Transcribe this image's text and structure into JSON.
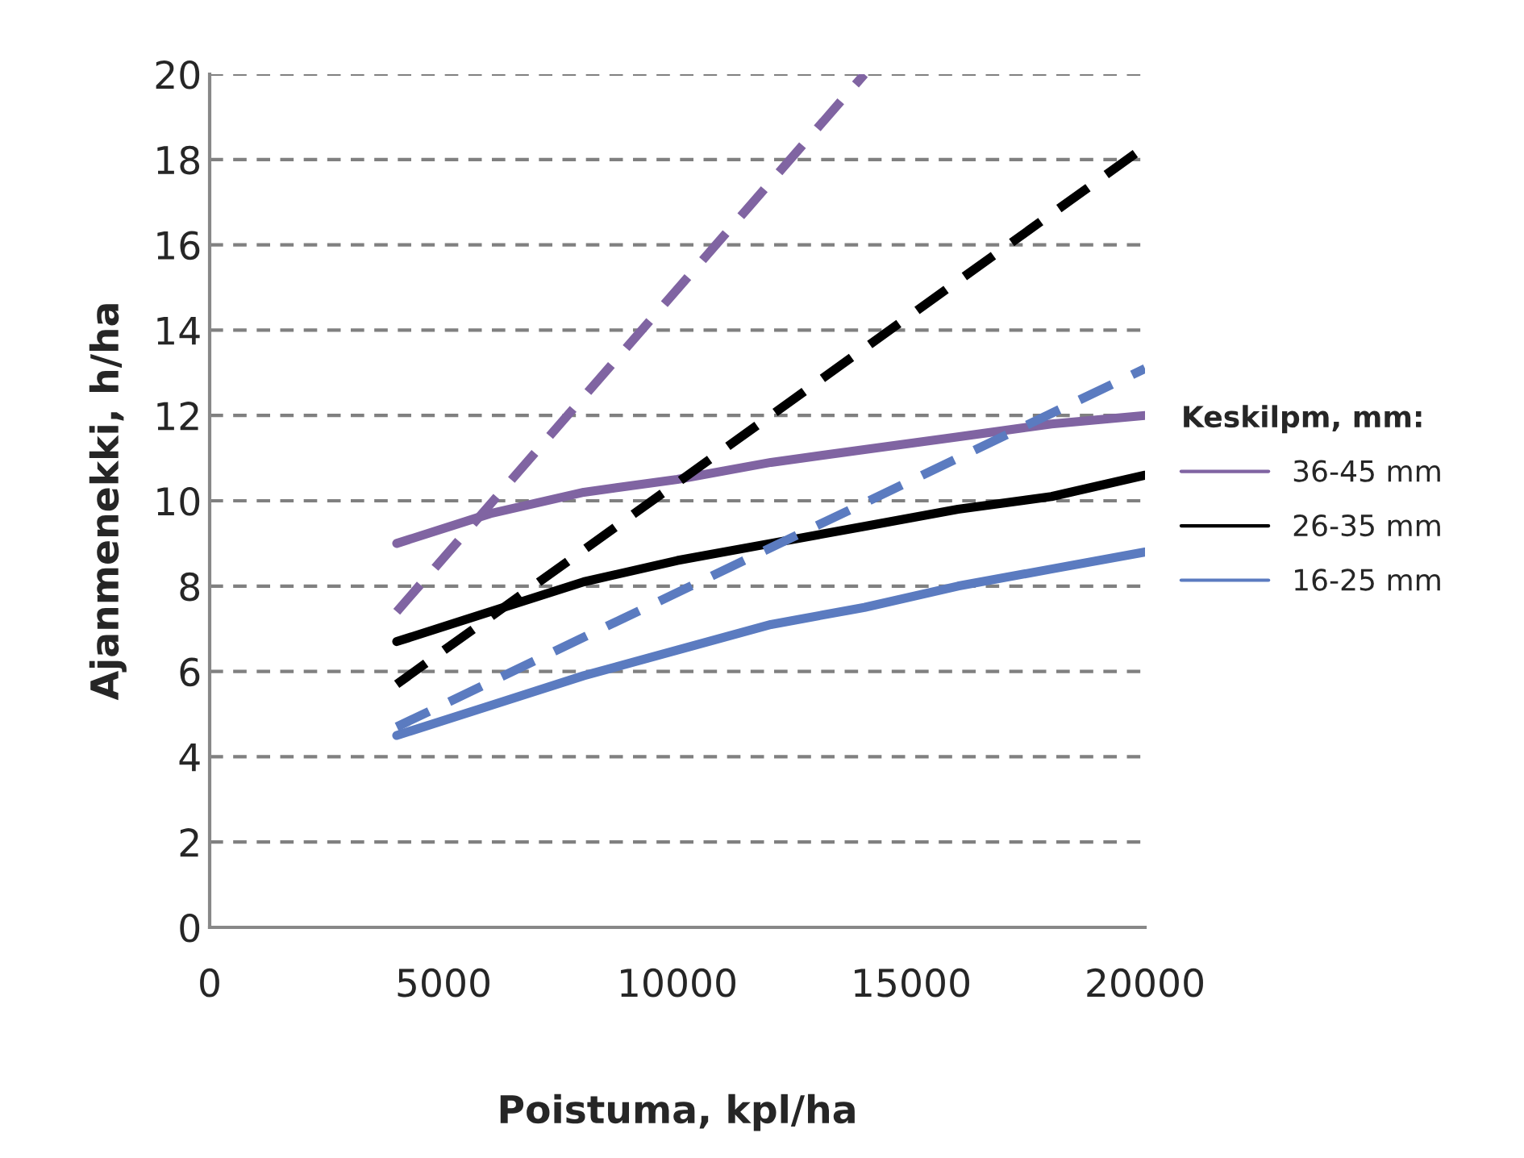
{
  "chart_data": {
    "type": "line",
    "xlabel": "Poistuma, kpl/ha",
    "ylabel": "Ajanmenekki, h/ha",
    "legend_title": "Keskilpm, mm:",
    "xlim": [
      0,
      20000
    ],
    "xticks": [
      0,
      5000,
      10000,
      15000,
      20000
    ],
    "ylim": [
      0,
      20
    ],
    "yticks": [
      0,
      2,
      4,
      6,
      8,
      10,
      12,
      14,
      16,
      18,
      20
    ],
    "grid": "y",
    "legend": "right",
    "marker": "none",
    "series": [
      {
        "name": "36-45 mm",
        "color": "#8064a2",
        "line_style": "solid",
        "x": [
          4000,
          6000,
          8000,
          10000,
          12000,
          14000,
          16000,
          18000,
          20000
        ],
        "values": [
          9.0,
          9.7,
          10.2,
          10.5,
          10.9,
          11.2,
          11.5,
          11.8,
          12.0
        ]
      },
      {
        "name": "26-35 mm",
        "color": "#000000",
        "line_style": "solid",
        "x": [
          4000,
          6000,
          8000,
          10000,
          12000,
          14000,
          16000,
          18000,
          20000
        ],
        "values": [
          6.7,
          7.4,
          8.1,
          8.6,
          9.0,
          9.4,
          9.8,
          10.1,
          10.6
        ]
      },
      {
        "name": "16-25 mm",
        "color": "#5b7bc0",
        "line_style": "solid",
        "x": [
          4000,
          6000,
          8000,
          10000,
          12000,
          14000,
          16000,
          18000,
          20000
        ],
        "values": [
          4.5,
          5.2,
          5.9,
          6.5,
          7.1,
          7.5,
          8.0,
          8.4,
          8.8
        ]
      },
      {
        "color": "#8064a2",
        "line_style": "dashed",
        "x": [
          4000,
          14000
        ],
        "values": [
          7.4,
          20.0
        ]
      },
      {
        "color": "#000000",
        "line_style": "dashed",
        "x": [
          4000,
          20000
        ],
        "values": [
          5.7,
          18.3
        ]
      },
      {
        "color": "#5b7bc0",
        "line_style": "dashed",
        "x": [
          4000,
          20000
        ],
        "values": [
          4.7,
          13.1
        ]
      }
    ]
  }
}
